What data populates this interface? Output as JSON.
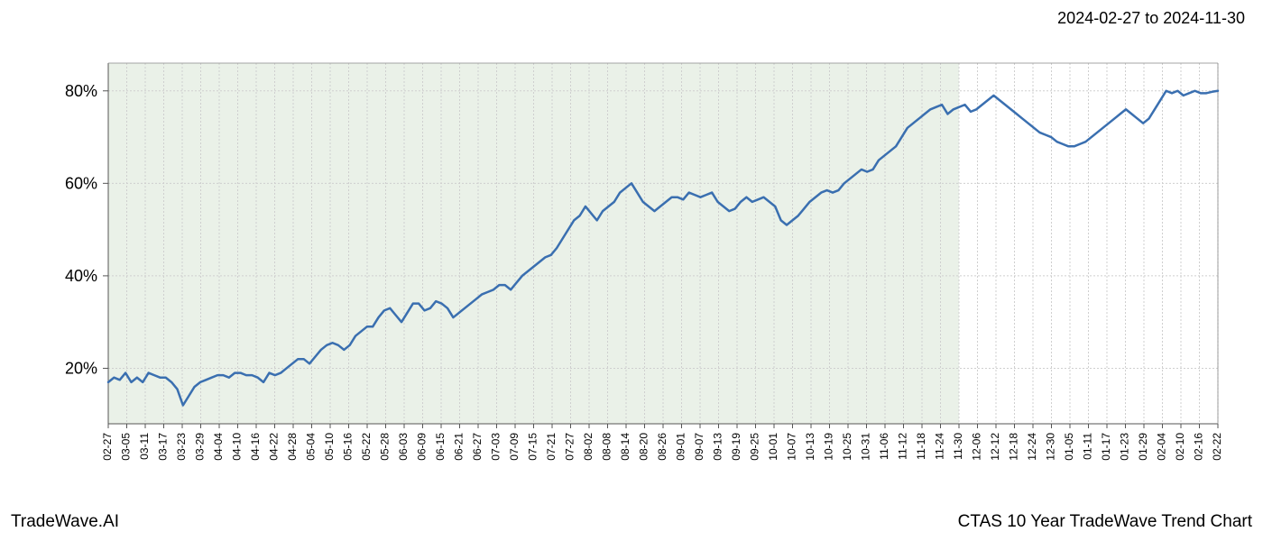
{
  "header": {
    "date_range": "2024-02-27 to 2024-11-30"
  },
  "footer": {
    "brand": "TradeWave.AI",
    "caption": "CTAS 10 Year TradeWave Trend Chart"
  },
  "chart": {
    "type": "line",
    "background_color": "#ffffff",
    "shaded_region_color": "#dce8d8",
    "shaded_region_opacity": 0.6,
    "shaded_start_idx": 0,
    "shaded_end_idx": 46,
    "line_color": "#3a6fb0",
    "line_width": 2.5,
    "grid_color": "#cfcfcf",
    "grid_dash": "2,2",
    "axis_color": "#555555",
    "plot_border_color": "#888888",
    "label_fontsize": 18,
    "xtick_fontsize": 12,
    "ylim": [
      8,
      86
    ],
    "yticks": [
      20,
      40,
      60,
      80
    ],
    "ytick_labels": [
      "20%",
      "40%",
      "60%",
      "80%"
    ],
    "x_labels": [
      "02-27",
      "03-05",
      "03-11",
      "03-17",
      "03-23",
      "03-29",
      "04-04",
      "04-10",
      "04-16",
      "04-22",
      "04-28",
      "05-04",
      "05-10",
      "05-16",
      "05-22",
      "05-28",
      "06-03",
      "06-09",
      "06-15",
      "06-21",
      "06-27",
      "07-03",
      "07-09",
      "07-15",
      "07-21",
      "07-27",
      "08-02",
      "08-08",
      "08-14",
      "08-20",
      "08-26",
      "09-01",
      "09-07",
      "09-13",
      "09-19",
      "09-25",
      "10-01",
      "10-07",
      "10-13",
      "10-19",
      "10-25",
      "10-31",
      "11-06",
      "11-12",
      "11-18",
      "11-24",
      "11-30",
      "12-06",
      "12-12",
      "12-18",
      "12-24",
      "12-30",
      "01-05",
      "01-11",
      "01-17",
      "01-23",
      "01-29",
      "02-04",
      "02-10",
      "02-16",
      "02-22"
    ],
    "series_values": [
      17,
      18,
      17.5,
      19,
      17,
      18,
      17,
      19,
      18.5,
      18,
      18,
      17,
      15.5,
      12,
      14,
      16,
      17,
      17.5,
      18,
      18.5,
      18.5,
      18,
      19,
      19,
      18.5,
      18.5,
      18,
      17,
      19,
      18.5,
      19,
      20,
      21,
      22,
      22,
      21,
      22.5,
      24,
      25,
      25.5,
      25,
      24,
      25,
      27,
      28,
      29,
      29,
      31,
      32.5,
      33,
      31.5,
      30,
      32,
      34,
      34,
      32.5,
      33,
      34.5,
      34,
      33,
      31,
      32,
      33,
      34,
      35,
      36,
      36.5,
      37,
      38,
      38,
      37,
      38.5,
      40,
      41,
      42,
      43,
      44,
      44.5,
      46,
      48,
      50,
      52,
      53,
      55,
      53.5,
      52,
      54,
      55,
      56,
      58,
      59,
      60,
      58,
      56,
      55,
      54,
      55,
      56,
      57,
      57,
      56.5,
      58,
      57.5,
      57,
      57.5,
      58,
      56,
      55,
      54,
      54.5,
      56,
      57,
      56,
      56.5,
      57,
      56,
      55,
      52,
      51,
      52,
      53,
      54.5,
      56,
      57,
      58,
      58.5,
      58,
      58.5,
      60,
      61,
      62,
      63,
      62.5,
      63,
      65,
      66,
      67,
      68,
      70,
      72,
      73,
      74,
      75,
      76,
      76.5,
      77,
      75,
      76,
      76.5,
      77,
      75.5,
      76,
      77,
      78,
      79,
      78,
      77,
      76,
      75,
      74,
      73,
      72,
      71,
      70.5,
      70,
      69,
      68.5,
      68,
      68,
      68.5,
      69,
      70,
      71,
      72,
      73,
      74,
      75,
      76,
      75,
      74,
      73,
      74,
      76,
      78,
      80,
      79.5,
      80,
      79,
      79.5,
      80,
      79.5,
      79.5,
      79.8,
      80
    ]
  }
}
